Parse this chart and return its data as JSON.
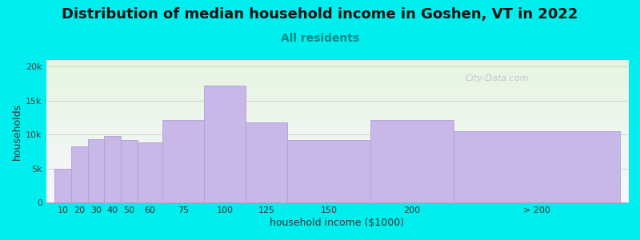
{
  "title": "Distribution of median household income in Goshen, VT in 2022",
  "subtitle": "All residents",
  "xlabel": "household income ($1000)",
  "ylabel": "households",
  "background_color": "#00EEEE",
  "plot_bg_gradient_top_left": "#e6f5e0",
  "plot_bg_gradient_bottom_right": "#f0f0ff",
  "bar_color": "#c8b8e8",
  "bar_edge_color": "#b0a0d8",
  "categories": [
    "10",
    "20",
    "30",
    "40",
    "50",
    "60",
    "75",
    "100",
    "125",
    "150",
    "200",
    "> 200"
  ],
  "values": [
    5000,
    8300,
    9300,
    9800,
    9200,
    8800,
    12200,
    17200,
    11800,
    9200,
    12200,
    10500
  ],
  "bar_widths": [
    10,
    10,
    10,
    10,
    10,
    15,
    25,
    25,
    25,
    50,
    50,
    100
  ],
  "bar_lefts": [
    5,
    15,
    25,
    35,
    45,
    55,
    70,
    95,
    120,
    145,
    195,
    245
  ],
  "xlim": [
    0,
    350
  ],
  "ylim": [
    0,
    21000
  ],
  "yticks": [
    0,
    5000,
    10000,
    15000,
    20000
  ],
  "ytick_labels": [
    "0",
    "5k",
    "10k",
    "15k",
    "20k"
  ],
  "title_fontsize": 13,
  "subtitle_fontsize": 10,
  "axis_label_fontsize": 9,
  "tick_fontsize": 8,
  "watermark_text": "City-Data.com"
}
